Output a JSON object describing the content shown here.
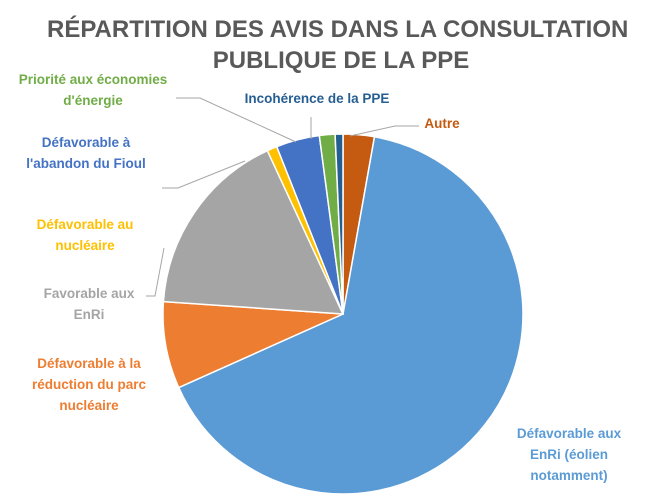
{
  "chart_data": {
    "type": "pie",
    "title": [
      "RÉPARTITION DES AVIS DANS LA CONSULTATION",
      "PUBLIQUE DE LA PPE"
    ],
    "legend": "none",
    "slices": [
      {
        "label": [
          "Autre"
        ],
        "value": 2.8,
        "color": "#C55A11"
      },
      {
        "label": [
          "Défavorable aux",
          "EnRi (éolien",
          "notamment)"
        ],
        "value": 65.5,
        "color": "#5B9BD5"
      },
      {
        "label": [
          "Défavorable à la",
          "réduction du parc",
          "nucléaire"
        ],
        "value": 7.8,
        "color": "#ED7D31"
      },
      {
        "label": [
          "Favorable aux",
          "EnRi"
        ],
        "value": 17.0,
        "color": "#A5A5A5"
      },
      {
        "label": [
          "Défavorable au",
          "nucléaire"
        ],
        "value": 0.9,
        "color": "#FFC000"
      },
      {
        "label": [
          "Défavorable à",
          "l'abandon du Fioul"
        ],
        "value": 3.9,
        "color": "#4472C4"
      },
      {
        "label": [
          "Priorité aux économies",
          "d'énergie"
        ],
        "value": 1.4,
        "color": "#70AD47"
      },
      {
        "label": [
          "Incohérence de la PPE"
        ],
        "value": 0.7,
        "color": "#255E91"
      }
    ]
  }
}
